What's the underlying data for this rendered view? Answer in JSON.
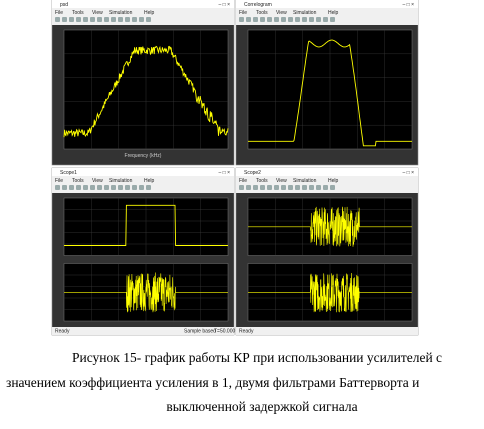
{
  "windows": [
    {
      "title": "psd",
      "menu": [
        "File",
        "Tools",
        "View",
        "Simulation",
        "Help"
      ],
      "x_label": "Frequency (kHz)"
    },
    {
      "title": "Correlogram",
      "menu": [
        "File",
        "Tools",
        "View",
        "Simulation",
        "Help"
      ]
    },
    {
      "title": "Scope1",
      "menu": [
        "File",
        "Tools",
        "View",
        "Simulation",
        "Help"
      ],
      "status": [
        "Ready",
        "Sample based",
        "T=50.000"
      ]
    },
    {
      "title": "Scope2",
      "menu": [
        "File",
        "Tools",
        "View",
        "Simulation",
        "Help"
      ],
      "status": [
        "Ready"
      ]
    }
  ],
  "caption": {
    "lines": [
      "Рисунок 15- график работы КР при использовании усилителей с",
      "значением коэффициента усиления в 1, двумя фильтрами Баттерворта и",
      "выключенной задержкой сигнала"
    ]
  }
}
